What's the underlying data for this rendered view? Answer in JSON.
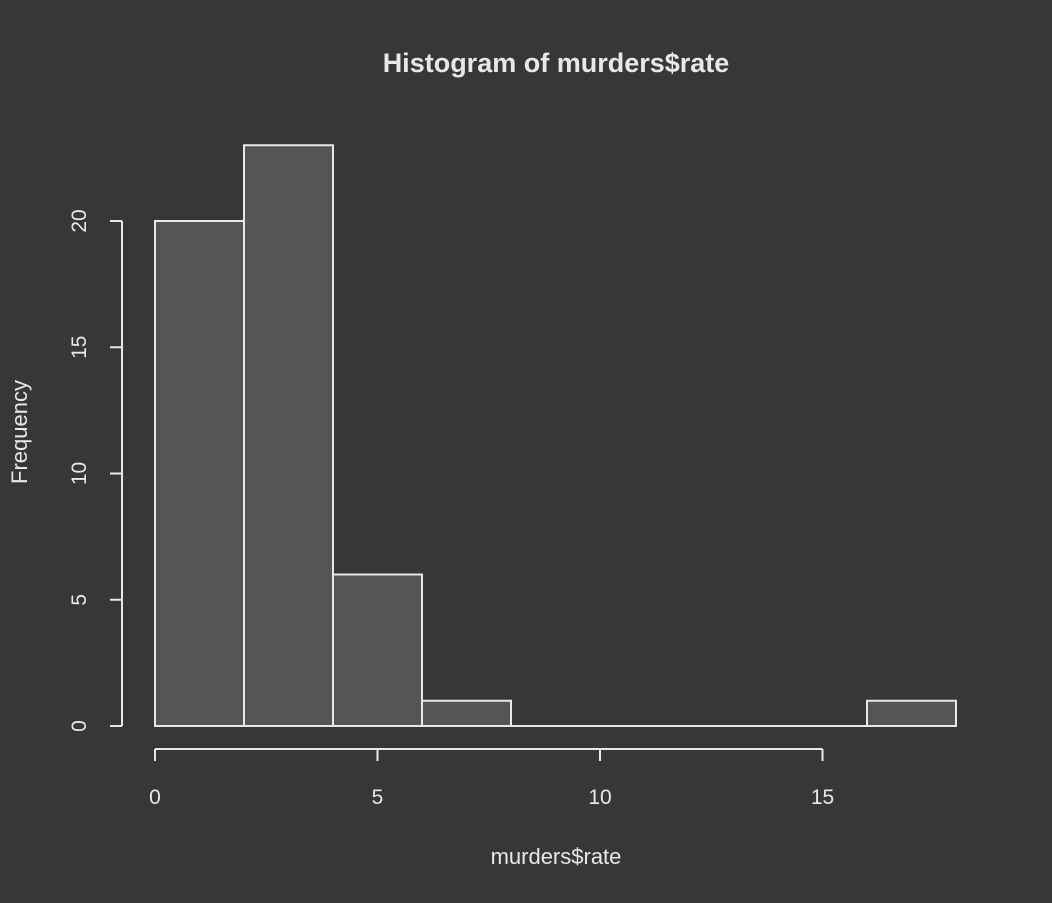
{
  "chart_data": {
    "type": "bar",
    "title": "Histogram of murders$rate",
    "xlabel": "murders$rate",
    "ylabel": "Frequency",
    "bins": [
      {
        "start": 0,
        "end": 2,
        "count": 20
      },
      {
        "start": 2,
        "end": 4,
        "count": 23
      },
      {
        "start": 4,
        "end": 6,
        "count": 6
      },
      {
        "start": 6,
        "end": 8,
        "count": 1
      },
      {
        "start": 8,
        "end": 10,
        "count": 0
      },
      {
        "start": 10,
        "end": 12,
        "count": 0
      },
      {
        "start": 12,
        "end": 14,
        "count": 0
      },
      {
        "start": 14,
        "end": 16,
        "count": 0
      },
      {
        "start": 16,
        "end": 18,
        "count": 1
      }
    ],
    "x_ticks": [
      0,
      5,
      10,
      15
    ],
    "y_ticks": [
      0,
      5,
      10,
      15,
      20
    ],
    "xlim": [
      0,
      18
    ],
    "ylim": [
      0,
      23
    ],
    "grid": false,
    "colors": {
      "background": "#373737",
      "bar_fill": "#555555",
      "foreground": "#e8e8e8"
    }
  }
}
